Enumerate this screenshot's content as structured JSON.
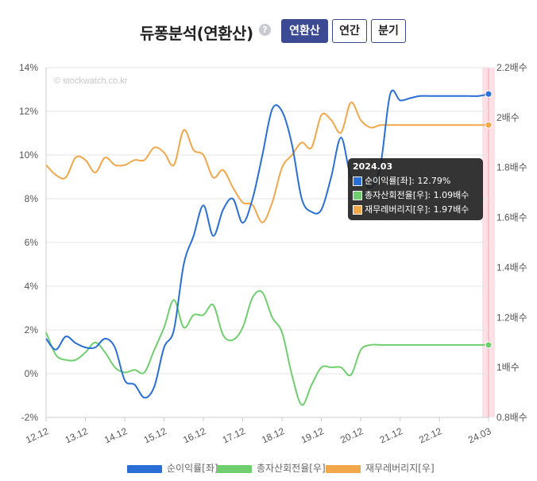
{
  "header": {
    "title": "듀퐁분석(연환산)",
    "help_icon": "?",
    "buttons": [
      {
        "label": "연환산",
        "active": true
      },
      {
        "label": "연간",
        "active": false
      },
      {
        "label": "분기",
        "active": false
      }
    ]
  },
  "watermark": "© stockwatch.co.kr",
  "tooltip": {
    "title": "2024.03",
    "rows": [
      {
        "label": "순이익률[좌]: 12.79%",
        "color": "#2a6fd6"
      },
      {
        "label": "총자산회전율[우]: 1.09배수",
        "color": "#6fcf6f"
      },
      {
        "label": "재무레버리지[우]: 1.97배수",
        "color": "#f2a74b"
      }
    ]
  },
  "chart_data": {
    "type": "line",
    "x": [
      "12.12",
      "13.03",
      "13.06",
      "13.09",
      "13.12",
      "14.03",
      "14.06",
      "14.09",
      "14.12",
      "15.03",
      "15.06",
      "15.09",
      "15.12",
      "16.03",
      "16.06",
      "16.09",
      "16.12",
      "17.03",
      "17.06",
      "17.09",
      "17.12",
      "18.03",
      "18.06",
      "18.09",
      "18.12",
      "19.03",
      "19.06",
      "19.09",
      "19.12",
      "20.03",
      "20.06",
      "20.09",
      "20.12",
      "21.03",
      "21.06",
      "21.09",
      "21.12",
      "22.03",
      "22.06",
      "22.09",
      "22.12",
      "23.03",
      "23.06",
      "23.09",
      "23.12",
      "24.03"
    ],
    "x_tick_labels": [
      "12.12",
      "13.12",
      "14.12",
      "15.12",
      "16.12",
      "17.12",
      "18.12",
      "19.12",
      "20.12",
      "21.12",
      "22.12",
      "24.03"
    ],
    "y_left": {
      "ticks": [
        "-2%",
        "0%",
        "2%",
        "4%",
        "6%",
        "8%",
        "10%",
        "12%",
        "14%"
      ],
      "ylim": [
        -2,
        14
      ]
    },
    "y_right": {
      "ticks": [
        "0.8배수",
        "1배수",
        "1.2배수",
        "1.4배수",
        "1.6배수",
        "1.8배수",
        "2배수",
        "2.2배수"
      ],
      "ylim": [
        0.8,
        2.2
      ]
    },
    "grid": true,
    "legend_position": "bottom",
    "series": [
      {
        "name": "순이익률[좌]",
        "axis": "left",
        "color": "#2a6fd6",
        "values": [
          1.6,
          1.1,
          1.7,
          1.4,
          1.2,
          1.2,
          1.6,
          1.2,
          -0.3,
          -0.5,
          -1.1,
          -0.6,
          1.2,
          2.0,
          5.0,
          6.3,
          7.7,
          6.3,
          7.5,
          8.0,
          6.9,
          8.0,
          10.0,
          12.1,
          12.0,
          10.5,
          8.0,
          7.4,
          7.5,
          9.0,
          10.8,
          9.0,
          9.0,
          8.5,
          9.5,
          12.79,
          12.5,
          12.6,
          12.7,
          12.7,
          12.7,
          12.7,
          12.7,
          12.7,
          12.7,
          12.79
        ]
      },
      {
        "name": "총자산회전율[우]",
        "axis": "right",
        "color": "#6fcf6f",
        "values": [
          1.14,
          1.05,
          1.03,
          1.03,
          1.06,
          1.1,
          1.06,
          1.0,
          0.98,
          0.99,
          0.98,
          1.07,
          1.16,
          1.27,
          1.16,
          1.21,
          1.21,
          1.25,
          1.13,
          1.11,
          1.16,
          1.28,
          1.3,
          1.2,
          1.14,
          0.97,
          0.85,
          0.93,
          1.0,
          1.0,
          1.0,
          0.97,
          1.07,
          1.09,
          1.09,
          1.09,
          1.09,
          1.09,
          1.09,
          1.09,
          1.09,
          1.09,
          1.09,
          1.09,
          1.09,
          1.09
        ]
      },
      {
        "name": "재무레버리지[우]",
        "axis": "right",
        "color": "#f2a74b",
        "values": [
          1.81,
          1.77,
          1.76,
          1.84,
          1.83,
          1.78,
          1.84,
          1.81,
          1.81,
          1.83,
          1.83,
          1.88,
          1.86,
          1.81,
          1.95,
          1.87,
          1.85,
          1.76,
          1.79,
          1.72,
          1.66,
          1.65,
          1.58,
          1.66,
          1.8,
          1.85,
          1.9,
          1.88,
          2.01,
          1.99,
          1.94,
          2.06,
          1.99,
          1.96,
          1.97,
          1.97,
          1.97,
          1.97,
          1.97,
          1.97,
          1.97,
          1.97,
          1.97,
          1.97,
          1.97,
          1.97
        ]
      }
    ]
  },
  "legend": [
    {
      "label": "순이익률[좌]",
      "color": "#2a6fd6"
    },
    {
      "label": "총자산회전율[우]",
      "color": "#6fcf6f"
    },
    {
      "label": "재무레버리지[우]",
      "color": "#f2a74b"
    }
  ]
}
